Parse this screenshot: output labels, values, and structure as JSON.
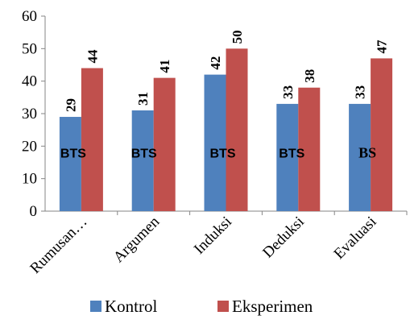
{
  "chart_data": {
    "type": "bar",
    "title": "",
    "xlabel": "",
    "ylabel": "",
    "ylim": [
      0,
      60
    ],
    "yticks": [
      0,
      10,
      20,
      30,
      40,
      50,
      60
    ],
    "ytick_labels": [
      "0",
      "10",
      "20",
      "30",
      "40",
      "50",
      "60"
    ],
    "grid": false,
    "legend_position": "bottom",
    "categories": [
      "Rumusan…",
      "Argumen",
      "Induksi",
      "Deduksi",
      "Evaluasi"
    ],
    "series": [
      {
        "name": "Kontrol",
        "color": "#4f81bd",
        "values": [
          29,
          31,
          42,
          33,
          33
        ]
      },
      {
        "name": "Eksperimen",
        "color": "#c0504d",
        "values": [
          44,
          41,
          50,
          38,
          47
        ]
      }
    ],
    "annotations": [
      "BTS",
      "BTS",
      "BTS",
      "BTS",
      "BS"
    ]
  }
}
